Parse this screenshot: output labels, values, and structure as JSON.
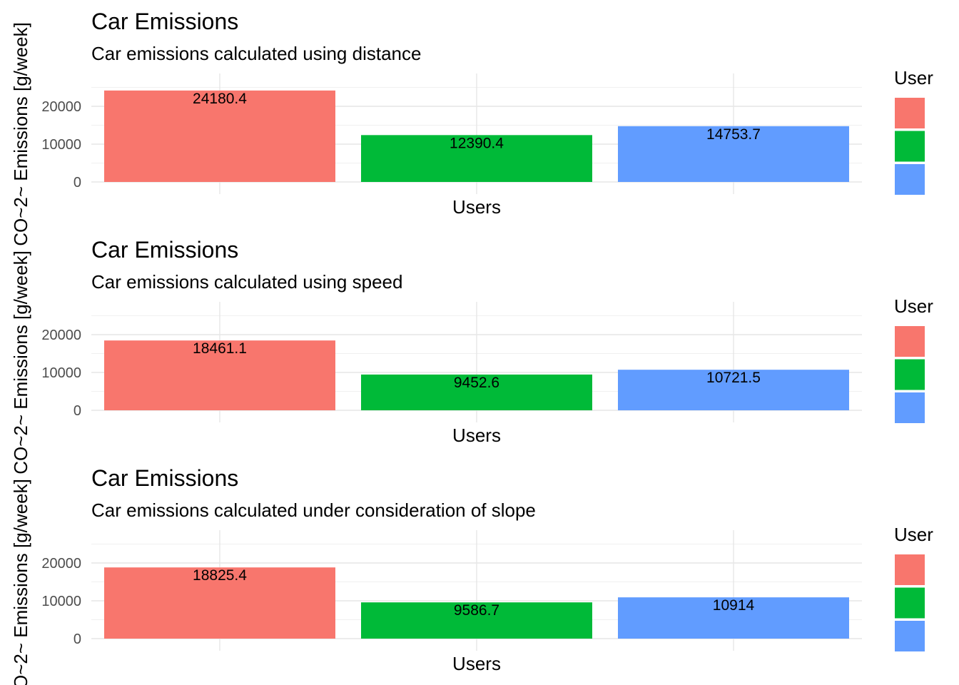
{
  "colors": {
    "user1": "#F8766D",
    "user2": "#00BA38",
    "user3": "#619CFF"
  },
  "chart_data": [
    {
      "type": "bar",
      "title": "Car Emissions",
      "subtitle": "Car emissions calculated using distance",
      "xlabel": "Users",
      "ylabel": "CO~2~ Emissions [g/week]",
      "legend_title": "User",
      "legend_position": "right",
      "grid": true,
      "ylim": [
        0,
        26000
      ],
      "yticks": [
        0,
        10000,
        20000
      ],
      "y_tick_labels": [
        "0",
        "10000",
        "20000"
      ],
      "values": [
        24180.4,
        12390.4,
        14753.7
      ],
      "value_labels": [
        "24180.4",
        "12390.4",
        "14753.7"
      ]
    },
    {
      "type": "bar",
      "title": "Car Emissions",
      "subtitle": "Car emissions calculated using speed",
      "xlabel": "Users",
      "ylabel": "CO~2~ Emissions [g/week]",
      "legend_title": "User",
      "legend_position": "right",
      "grid": true,
      "ylim": [
        0,
        26000
      ],
      "yticks": [
        0,
        10000,
        20000
      ],
      "y_tick_labels": [
        "0",
        "10000",
        "20000"
      ],
      "values": [
        18461.1,
        9452.6,
        10721.5
      ],
      "value_labels": [
        "18461.1",
        "9452.6",
        "10721.5"
      ]
    },
    {
      "type": "bar",
      "title": "Car Emissions",
      "subtitle": "Car emissions calculated under consideration of slope",
      "xlabel": "Users",
      "ylabel": "CO~2~ Emissions [g/week]",
      "legend_title": "User",
      "legend_position": "right",
      "grid": true,
      "ylim": [
        0,
        26000
      ],
      "yticks": [
        0,
        10000,
        20000
      ],
      "y_tick_labels": [
        "0",
        "10000",
        "20000"
      ],
      "values": [
        18825.4,
        9586.7,
        10914
      ],
      "value_labels": [
        "18825.4",
        "9586.7",
        "10914"
      ]
    }
  ]
}
